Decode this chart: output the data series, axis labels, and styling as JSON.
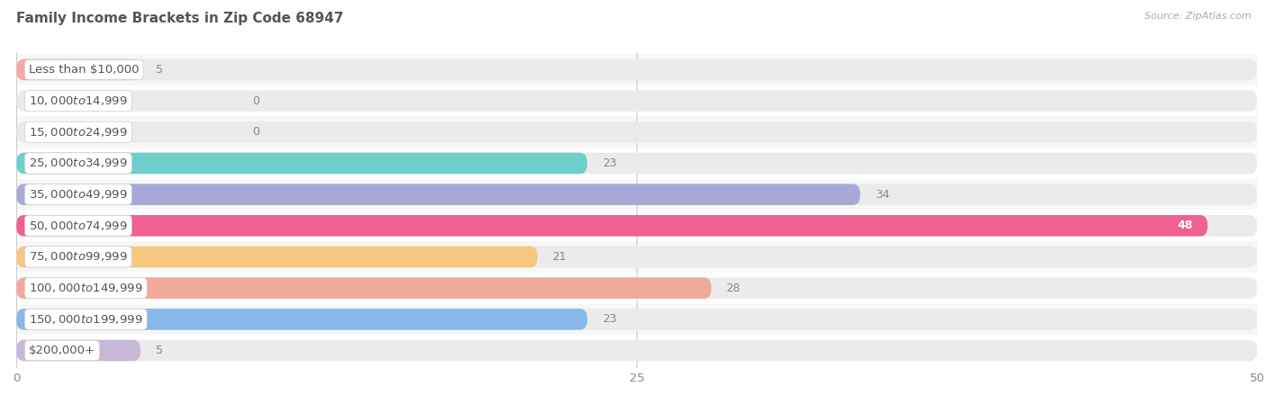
{
  "title": "Family Income Brackets in Zip Code 68947",
  "source": "Source: ZipAtlas.com",
  "categories": [
    "Less than $10,000",
    "$10,000 to $14,999",
    "$15,000 to $24,999",
    "$25,000 to $34,999",
    "$35,000 to $49,999",
    "$50,000 to $74,999",
    "$75,000 to $99,999",
    "$100,000 to $149,999",
    "$150,000 to $199,999",
    "$200,000+"
  ],
  "values": [
    5,
    0,
    0,
    23,
    34,
    48,
    21,
    28,
    23,
    5
  ],
  "bar_colors": [
    "#f4a9a8",
    "#a8b8e8",
    "#c4b0e0",
    "#6ecfca",
    "#a8a8d8",
    "#f06090",
    "#f8c880",
    "#f0a898",
    "#88b8e8",
    "#c8b8d8"
  ],
  "xlim": [
    0,
    50
  ],
  "xticks": [
    0,
    25,
    50
  ],
  "background_color": "#ffffff",
  "row_bg_odd": "#f7f7f7",
  "row_bg_even": "#ffffff",
  "bar_bg_color": "#ebebeb",
  "title_fontsize": 11,
  "label_fontsize": 9.5,
  "value_fontsize": 9,
  "bar_height": 0.68,
  "value_inside_threshold": 40
}
